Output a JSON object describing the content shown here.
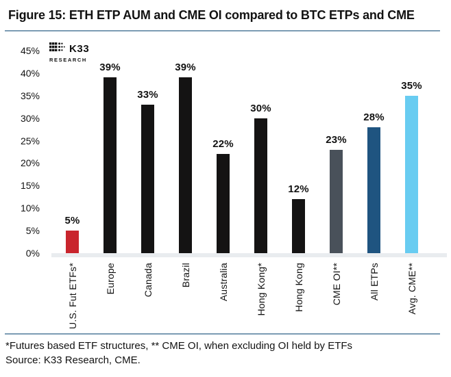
{
  "figure": {
    "title": "Figure 15: ETH ETP AUM and CME OI compared to BTC ETPs and CME",
    "footnote_line1": "*Futures based ETF structures, ** CME OI, when excluding OI held by ETFs",
    "footnote_line2": "Source: K33 Research, CME."
  },
  "logo": {
    "name": "K33",
    "subtitle": "RESEARCH"
  },
  "colors": {
    "rule_blue": "#7b9bb3",
    "baseline_band": "#e9ecef",
    "bar_black": "#141313",
    "bar_red": "#c9252d",
    "bar_gray": "#49515a",
    "bar_dark_blue": "#1f5480",
    "bar_light_blue": "#68ccf1",
    "text": "#121212"
  },
  "chart_data": {
    "type": "bar",
    "title": "ETH ETP AUM and CME OI compared to BTC ETPs and CME",
    "categories": [
      "U.S. Fut ETFs*",
      "Europe",
      "Canada",
      "Brazil",
      "Australia",
      "Hong Kong*",
      "Hong Kong",
      "CME OI**",
      "All ETPs",
      "Avg. CME**"
    ],
    "values": [
      5,
      39,
      33,
      39,
      22,
      30,
      12,
      23,
      28,
      35
    ],
    "value_labels": [
      "5%",
      "39%",
      "33%",
      "39%",
      "22%",
      "30%",
      "12%",
      "23%",
      "28%",
      "35%"
    ],
    "bar_colors": [
      "#c9252d",
      "#141313",
      "#141313",
      "#141313",
      "#141313",
      "#141313",
      "#141313",
      "#49515a",
      "#1f5480",
      "#68ccf1"
    ],
    "xlabel": "",
    "ylabel": "",
    "ylim": [
      0,
      45
    ],
    "ytick_labels": [
      "45%",
      "40%",
      "35%",
      "30%",
      "25%",
      "20%",
      "15%",
      "10%",
      "5%",
      "0%"
    ],
    "grid": false,
    "legend": "none",
    "value_label_position": "above-bars",
    "xtick_rotation": 90
  }
}
